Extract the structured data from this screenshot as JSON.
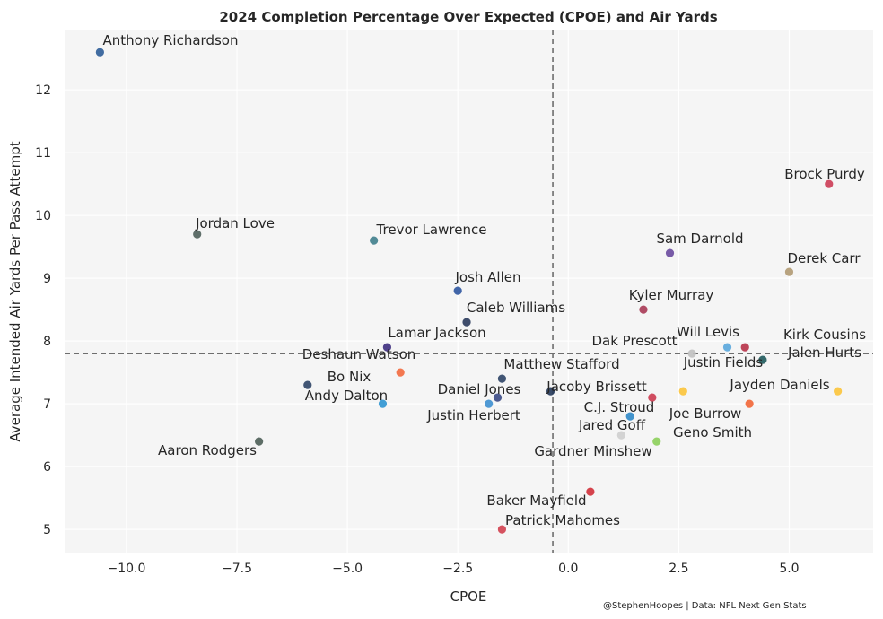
{
  "chart_data": {
    "type": "scatter",
    "title": "2024 Completion Percentage Over Expected (CPOE) and Air Yards",
    "xlabel": "CPOE",
    "ylabel": "Average Intended Air Yards Per Pass Attempt",
    "xlim": [
      -11.4,
      6.9
    ],
    "ylim": [
      4.63,
      12.96
    ],
    "xticks": [
      -10.0,
      -7.5,
      -5.0,
      -2.5,
      0.0,
      2.5,
      5.0
    ],
    "xtick_labels": [
      "−10.0",
      "−7.5",
      "−5.0",
      "−2.5",
      "0.0",
      "2.5",
      "5.0"
    ],
    "yticks": [
      5,
      6,
      7,
      8,
      9,
      10,
      11,
      12
    ],
    "ytick_labels": [
      "5",
      "6",
      "7",
      "8",
      "9",
      "10",
      "11",
      "12"
    ],
    "grid": true,
    "reference_lines": {
      "x_mean_cpoe": -0.35,
      "y_mean_air_yards": 7.8
    },
    "credit": "@StephenHoopes | Data: NFL Next Gen Stats",
    "points": [
      {
        "name": "Anthony Richardson",
        "x": -10.6,
        "y": 12.6,
        "color": "#2d5d98"
      },
      {
        "name": "Jordan Love",
        "x": -8.4,
        "y": 9.7,
        "color": "#4f605b"
      },
      {
        "name": "Trevor Lawrence",
        "x": -4.4,
        "y": 9.6,
        "color": "#3f7e8c"
      },
      {
        "name": "Josh Allen",
        "x": -2.5,
        "y": 8.8,
        "color": "#2e55a0"
      },
      {
        "name": "Caleb Williams",
        "x": -2.3,
        "y": 8.3,
        "color": "#2a3a5c"
      },
      {
        "name": "Lamar Jackson",
        "x": -4.1,
        "y": 7.9,
        "color": "#3e2f80"
      },
      {
        "name": "Deshaun Watson",
        "x": -5.9,
        "y": 7.3,
        "color": "#2d4466"
      },
      {
        "name": "Bo Nix",
        "x": -3.8,
        "y": 7.5,
        "color": "#f36a3e"
      },
      {
        "name": "Andy Dalton",
        "x": -4.2,
        "y": 7.0,
        "color": "#2f95d2"
      },
      {
        "name": "Matthew Stafford",
        "x": -1.5,
        "y": 7.4,
        "color": "#2d4466"
      },
      {
        "name": "Daniel Jones",
        "x": -1.6,
        "y": 7.1,
        "color": "#3b4a85"
      },
      {
        "name": "Justin Herbert",
        "x": -1.8,
        "y": 7.0,
        "color": "#3d8fd0"
      },
      {
        "name": "Jacoby Brissett",
        "x": -0.4,
        "y": 7.2,
        "color": "#25385a"
      },
      {
        "name": "Aaron Rodgers",
        "x": -7.0,
        "y": 6.4,
        "color": "#4d5e57"
      },
      {
        "name": "Baker Mayfield",
        "x": 0.5,
        "y": 5.6,
        "color": "#d1303a"
      },
      {
        "name": "Patrick Mahomes",
        "x": -1.5,
        "y": 5.0,
        "color": "#d1404f"
      },
      {
        "name": "Brock Purdy",
        "x": 5.9,
        "y": 10.5,
        "color": "#cc3c55"
      },
      {
        "name": "Sam Darnold",
        "x": 2.3,
        "y": 9.4,
        "color": "#6a4a9e"
      },
      {
        "name": "Derek Carr",
        "x": 5.0,
        "y": 9.1,
        "color": "#b19a73"
      },
      {
        "name": "Kyler Murray",
        "x": 1.7,
        "y": 8.5,
        "color": "#a83a55"
      },
      {
        "name": "Dak Prescott",
        "x": 2.8,
        "y": 7.8,
        "color": "#c0c0c0"
      },
      {
        "name": "Will Levis",
        "x": 3.6,
        "y": 7.9,
        "color": "#5aa7dd"
      },
      {
        "name": "Kirk Cousins",
        "x": 4.0,
        "y": 7.9,
        "color": "#b83349"
      },
      {
        "name": "Jalen Hurts",
        "x": 4.4,
        "y": 7.7,
        "color": "#1f5a5c"
      },
      {
        "name": "Justin Fields",
        "x": 2.6,
        "y": 7.2,
        "color": "#fcc43a"
      },
      {
        "name": "Jayden Daniels",
        "x": 6.1,
        "y": 7.2,
        "color": "#fcc43a"
      },
      {
        "name": "C.J. Stroud",
        "x": 1.9,
        "y": 7.1,
        "color": "#cc3b50"
      },
      {
        "name": "Joe Burrow",
        "x": 4.1,
        "y": 7.0,
        "color": "#f26636"
      },
      {
        "name": "Jared Goff",
        "x": 1.4,
        "y": 6.8,
        "color": "#2f88c8"
      },
      {
        "name": "Gardner Minshew",
        "x": 1.2,
        "y": 6.5,
        "color": "#cfcfcf"
      },
      {
        "name": "Geno Smith",
        "x": 2.0,
        "y": 6.4,
        "color": "#8ccf5a"
      }
    ]
  }
}
